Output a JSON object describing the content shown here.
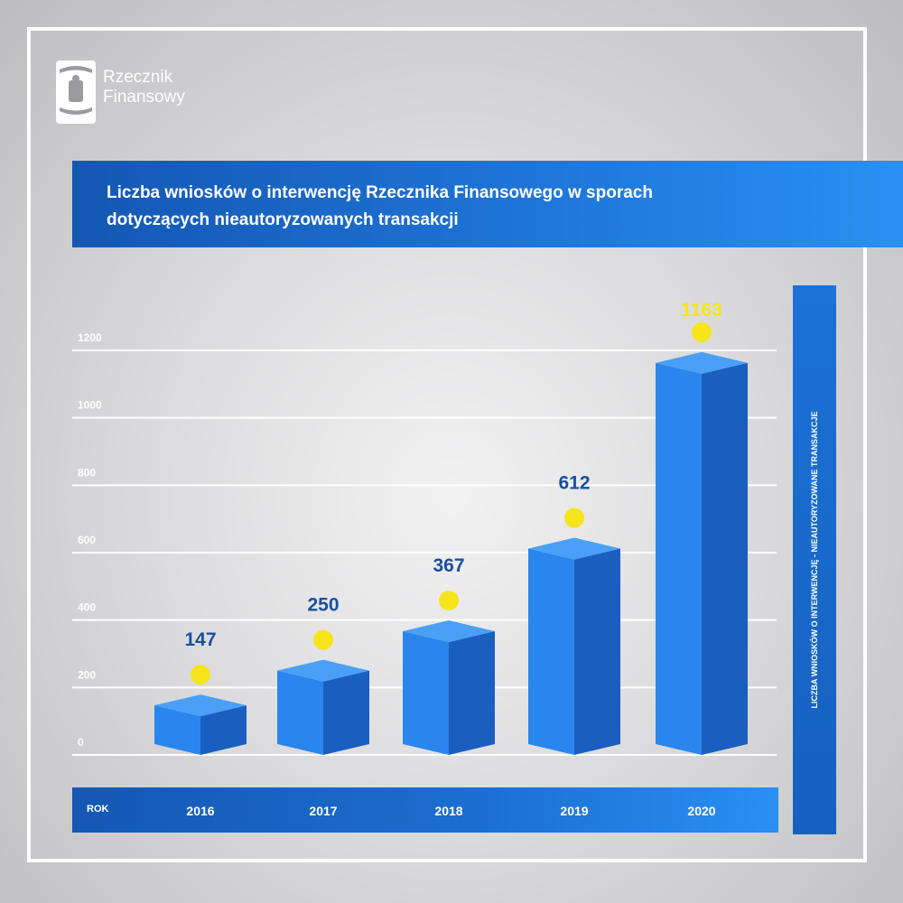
{
  "brand": {
    "name": "Rzecznik\nFinansowy",
    "colors": {
      "primary": "#1a6fd6",
      "accent": "#f5e51a",
      "dark": "#1557b3"
    }
  },
  "chart_data": {
    "type": "bar",
    "title": "Liczba wniosków o interwencję Rzecznika Finansowego w sporach dotyczących nieautoryzowanych transakcji",
    "ylabel": "LICZBA WNIOSKÓW O INTERWENCJĘ - NIEAUTORYZOWANE TRANSAKCJE",
    "xlabel": "ROK",
    "categories": [
      "2016",
      "2017",
      "2018",
      "2019",
      "2020"
    ],
    "values": [
      147,
      250,
      367,
      612,
      1163
    ],
    "ylim": [
      0,
      1200
    ],
    "yticks": [
      0,
      200,
      400,
      600,
      800,
      1000,
      1200
    ],
    "grid": true,
    "colors": {
      "bar_front": "#2a86ee",
      "bar_side": "#1a5fc0",
      "bar_top": "#4aa0f7",
      "marker": "#f5e51a",
      "value_label": "#1a4f9e",
      "last_value_label": "#f5e51a"
    }
  }
}
